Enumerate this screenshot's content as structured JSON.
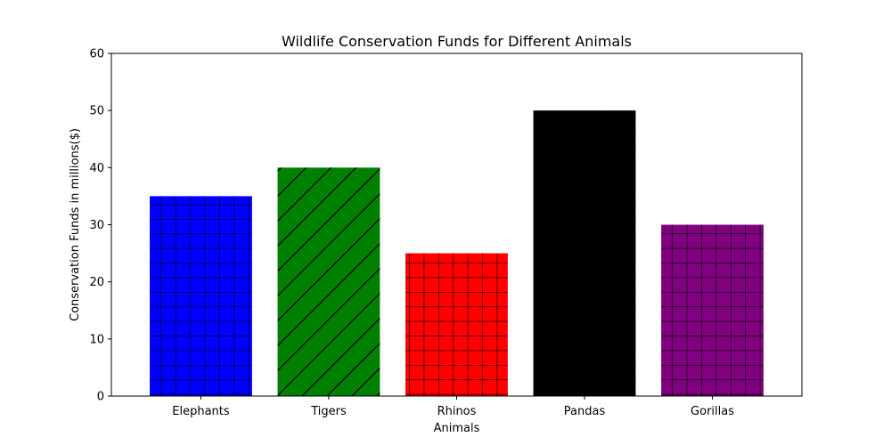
{
  "chart_data": {
    "type": "bar",
    "title": "Wildlife Conservation Funds for Different Animals",
    "xlabel": "Animals",
    "ylabel": "Conservation Funds in millions($)",
    "categories": [
      "Elephants",
      "Tigers",
      "Rhinos",
      "Pandas",
      "Gorillas"
    ],
    "values": [
      35,
      40,
      25,
      50,
      30
    ],
    "colors": [
      "#0000ff",
      "#008000",
      "#ff0000",
      "#000000",
      "#800080"
    ],
    "hatches": [
      "grid",
      "diagonal",
      "grid",
      "grid",
      "grid"
    ],
    "ylim": [
      0,
      60
    ],
    "yticks": [
      0,
      10,
      20,
      30,
      40,
      50,
      60
    ],
    "grid": false,
    "legend": "none"
  }
}
